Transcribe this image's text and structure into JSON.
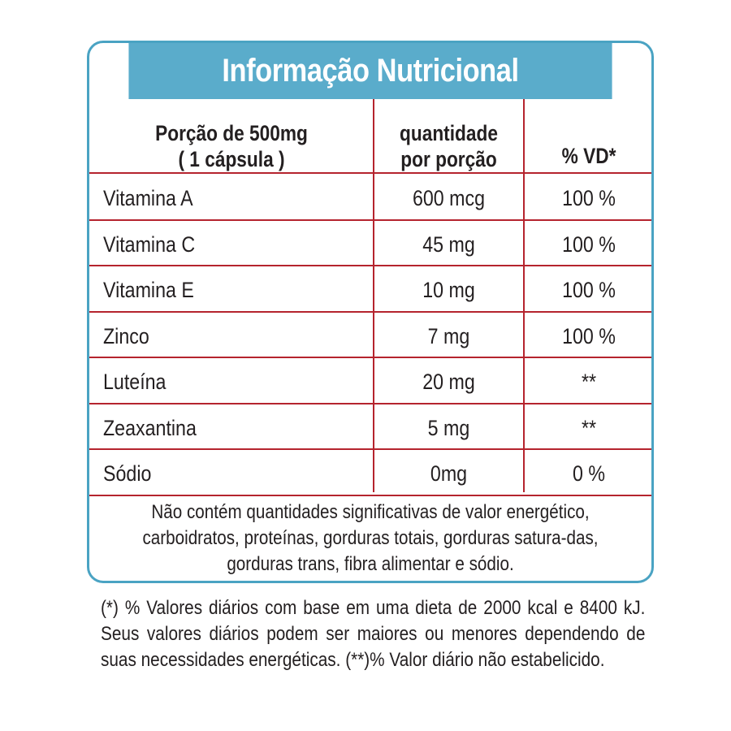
{
  "title": "Informação Nutricional",
  "header": {
    "portion_line1": "Porção de 500mg",
    "portion_line2": "( 1 cápsula )",
    "qty_line1": "quantidade",
    "qty_line2": "por porção",
    "vd": "% VD*"
  },
  "rows": [
    {
      "name": "Vitamina A",
      "qty": "600 mcg",
      "vd": "100 %"
    },
    {
      "name": "Vitamina C",
      "qty": "45 mg",
      "vd": "100 %"
    },
    {
      "name": "Vitamina E",
      "qty": "10 mg",
      "vd": "100 %"
    },
    {
      "name": "Zinco",
      "qty": "7 mg",
      "vd": "100 %"
    },
    {
      "name": "Luteína",
      "qty": "20 mg",
      "vd": "**"
    },
    {
      "name": "Zeaxantina",
      "qty": "5 mg",
      "vd": "**"
    },
    {
      "name": "Sódio",
      "qty": "0mg",
      "vd": "0 %"
    }
  ],
  "note": "Não contém quantidades significativas de valor energético, carboidratos, proteínas, gorduras totais, gorduras satura-das, gorduras trans, fibra alimentar e sódio.",
  "footnote": "(*) % Valores diários com base em uma dieta de 2000 kcal e 8400 kJ. Seus valores diários podem ser maiores ou menores dependendo de suas necessidades energéticas. (**)% Valor diário não estabelicido.",
  "colors": {
    "header_bg": "#5aaccb",
    "border": "#4aa3c3",
    "rule": "#b5242e"
  }
}
